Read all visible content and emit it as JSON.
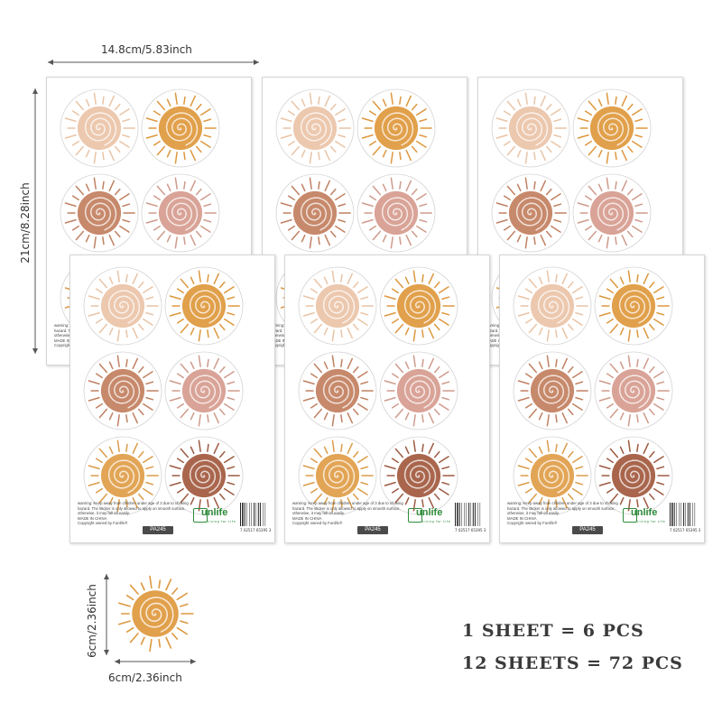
{
  "dimensions": {
    "sheet_width": "14.8cm/5.83inch",
    "sheet_height": "21cm/8.28inch",
    "sticker_height": "6cm/2.36inch",
    "sticker_width": "6cm/2.36inch"
  },
  "sheet": {
    "warning_lines": [
      "warning: Keep away from children under age of 3 due to choking",
      "hazard. The sticker is only allowed to apply on smooth surface,",
      "otherwise, it may fall off easily.",
      "MADE IN CHINA",
      "Copyright owned by Funlife®"
    ],
    "product_code": "PA245",
    "brand": "unlife",
    "brand_tagline": "Living for Life",
    "barcode_number": "7 02517 65395 3"
  },
  "counts": {
    "line1": "1 SHEET = 6 PCS",
    "line2": "12 SHEETS = 72 PCS"
  },
  "colors": {
    "sun_colors": [
      "#ecc8ae",
      "#e1a04b",
      "#c7896b",
      "#d9a397",
      "#e2a556",
      "#a9664d"
    ],
    "ray_colors": [
      "#e9c4a6",
      "#dd983f",
      "#c08162",
      "#cf9b8c",
      "#dc9c4a",
      "#9d5b43"
    ]
  }
}
